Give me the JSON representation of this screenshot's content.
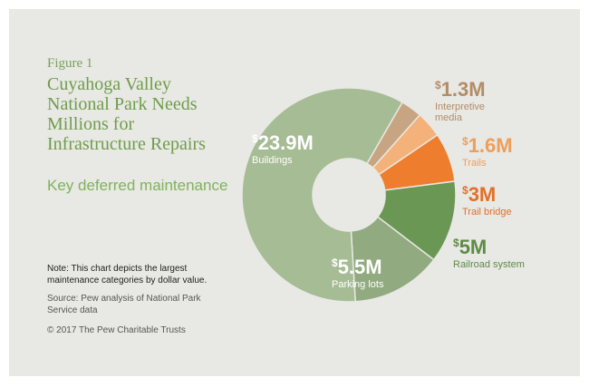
{
  "figure_label": "Figure 1",
  "title": "Cuyahoga Valley National Park Needs Millions for Infrastructure Repairs",
  "subtitle": "Key deferred maintenance",
  "note": "Note: This chart depicts the largest maintenance categories by dollar value.",
  "source": "Source: Pew analysis of National Park Service data",
  "copyright": "© 2017 The Pew Charitable Trusts",
  "chart_data": {
    "type": "pie",
    "donut": true,
    "unit": "$M",
    "slices": [
      {
        "name": "Interpretive media",
        "name_lines": [
          "Interpretive",
          "media"
        ],
        "value": 1.3,
        "label": "1.3M",
        "color": "#c8a582",
        "label_color": "#b28d66"
      },
      {
        "name": "Trails",
        "name_lines": [
          "Trails"
        ],
        "value": 1.6,
        "label": "1.6M",
        "color": "#f4b27a",
        "label_color": "#ee9e5b"
      },
      {
        "name": "Trail bridge",
        "name_lines": [
          "Trail bridge"
        ],
        "value": 3,
        "label": "3M",
        "color": "#ef7d2e",
        "label_color": "#e2702a"
      },
      {
        "name": "Railroad system",
        "name_lines": [
          "Railroad system"
        ],
        "value": 5,
        "label": "5M",
        "color": "#6a9753",
        "label_color": "#5f8a47"
      },
      {
        "name": "Parking lots",
        "name_lines": [
          "Parking lots"
        ],
        "value": 5.5,
        "label": "5.5M",
        "color": "#91aa80",
        "label_color": "#ffffff"
      },
      {
        "name": "Buildings",
        "name_lines": [
          "Buildings"
        ],
        "value": 23.9,
        "label": "23.9M",
        "color": "#a6bc94",
        "label_color": "#ffffff"
      }
    ]
  }
}
